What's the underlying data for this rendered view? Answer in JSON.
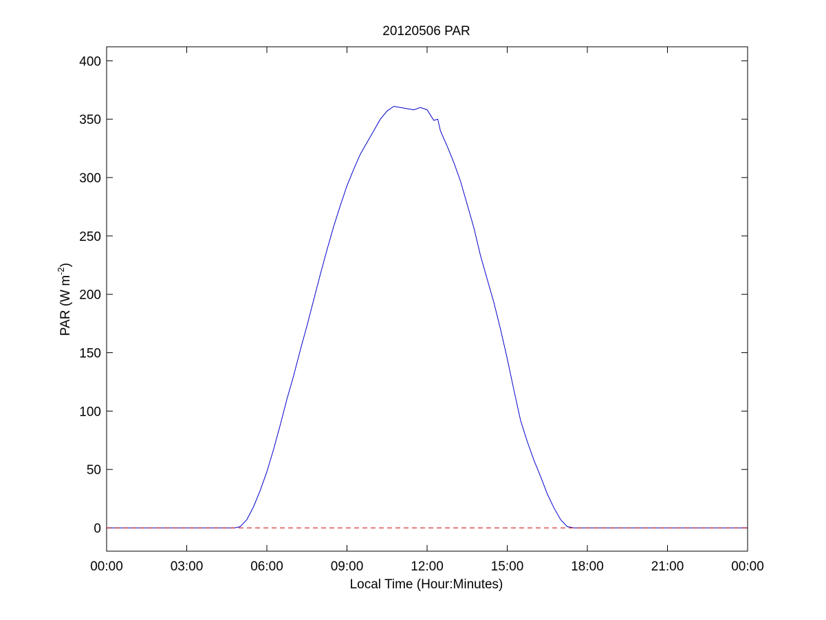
{
  "chart_data": {
    "type": "line",
    "title": "20120506 PAR",
    "xlabel": "Local Time (Hour:Minutes)",
    "ylabel": {
      "main": "PAR (W m",
      "superscript": "-2",
      "close": ")"
    },
    "x_unit": "hours (local time)",
    "xlim": [
      0,
      24
    ],
    "ylim": [
      -20,
      412
    ],
    "x_ticks": [
      0,
      3,
      6,
      9,
      12,
      15,
      18,
      21,
      24
    ],
    "x_tick_labels": [
      "00:00",
      "03:00",
      "06:00",
      "09:00",
      "12:00",
      "15:00",
      "18:00",
      "21:00",
      "00:00"
    ],
    "y_ticks": [
      0,
      50,
      100,
      150,
      200,
      250,
      300,
      350,
      400
    ],
    "y_tick_labels": [
      "0",
      "50",
      "100",
      "150",
      "200",
      "250",
      "300",
      "350",
      "400"
    ],
    "grid": false,
    "legend": "none",
    "series": [
      {
        "color": "#0000cc",
        "style": "solid",
        "x": [
          0,
          4.8,
          5.0,
          5.25,
          5.5,
          5.75,
          6.0,
          6.25,
          6.5,
          6.75,
          7.0,
          7.25,
          7.5,
          7.75,
          8.0,
          8.25,
          8.5,
          8.75,
          9.0,
          9.25,
          9.5,
          9.75,
          10.0,
          10.25,
          10.5,
          10.75,
          11.0,
          11.25,
          11.5,
          11.75,
          12.0,
          12.25,
          12.4,
          12.5,
          12.75,
          13.0,
          13.25,
          13.5,
          13.75,
          14.0,
          14.25,
          14.5,
          14.75,
          15.0,
          15.25,
          15.5,
          15.75,
          16.0,
          16.25,
          16.5,
          16.75,
          17.0,
          17.25,
          17.5,
          17.75,
          18.0,
          18.25,
          18.5,
          18.75,
          19.0,
          19.5,
          24
        ],
        "y": [
          0,
          0,
          1,
          7,
          18,
          32,
          48,
          67,
          88,
          110,
          130,
          152,
          173,
          195,
          217,
          238,
          258,
          276,
          293,
          307,
          320,
          330,
          340,
          350,
          357,
          361,
          360,
          359,
          358,
          360,
          358,
          349,
          350,
          340,
          327,
          313,
          297,
          277,
          257,
          233,
          213,
          193,
          170,
          145,
          118,
          92,
          74,
          58,
          44,
          29,
          17,
          7,
          1,
          0,
          0,
          0,
          0,
          0,
          0,
          0,
          0,
          0
        ]
      },
      {
        "color": "#cc0000",
        "style": "dashed",
        "x": [
          0,
          24
        ],
        "y": [
          0,
          0
        ]
      }
    ]
  }
}
